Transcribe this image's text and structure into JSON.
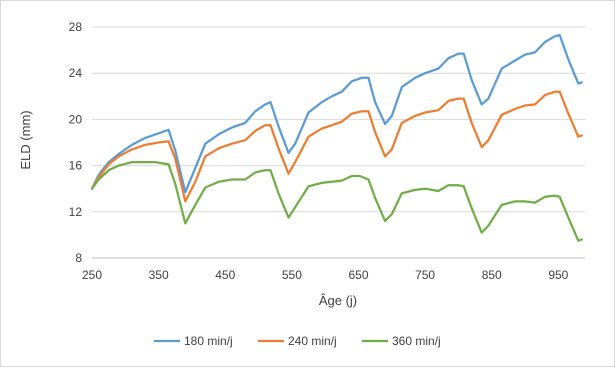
{
  "chart_data": {
    "type": "line",
    "title": "",
    "xlabel": "Âge (j)",
    "ylabel": "ELD (mm)",
    "xlim": [
      250,
      990
    ],
    "ylim": [
      8,
      28
    ],
    "x_ticks": [
      250,
      350,
      450,
      550,
      650,
      750,
      850,
      950
    ],
    "y_ticks": [
      8,
      12,
      16,
      20,
      24,
      28
    ],
    "grid": "horizontal",
    "legend_position": "bottom",
    "series": [
      {
        "name": "180 min/j",
        "color": "#5B9BD5",
        "points": [
          [
            250,
            14
          ],
          [
            260,
            15.2
          ],
          [
            275,
            16.3
          ],
          [
            290,
            17
          ],
          [
            310,
            17.8
          ],
          [
            330,
            18.4
          ],
          [
            350,
            18.8
          ],
          [
            365,
            19.1
          ],
          [
            375,
            17.3
          ],
          [
            390,
            13.7
          ],
          [
            405,
            15.8
          ],
          [
            420,
            17.9
          ],
          [
            440,
            18.7
          ],
          [
            460,
            19.3
          ],
          [
            480,
            19.7
          ],
          [
            495,
            20.7
          ],
          [
            510,
            21.3
          ],
          [
            518,
            21.5
          ],
          [
            530,
            19.4
          ],
          [
            545,
            17.1
          ],
          [
            555,
            17.9
          ],
          [
            575,
            20.6
          ],
          [
            595,
            21.5
          ],
          [
            610,
            22
          ],
          [
            625,
            22.4
          ],
          [
            640,
            23.3
          ],
          [
            655,
            23.6
          ],
          [
            665,
            23.6
          ],
          [
            675,
            21.5
          ],
          [
            690,
            19.6
          ],
          [
            700,
            20.3
          ],
          [
            715,
            22.8
          ],
          [
            735,
            23.6
          ],
          [
            750,
            24
          ],
          [
            770,
            24.4
          ],
          [
            785,
            25.3
          ],
          [
            800,
            25.7
          ],
          [
            808,
            25.7
          ],
          [
            820,
            23.4
          ],
          [
            835,
            21.3
          ],
          [
            845,
            21.8
          ],
          [
            865,
            24.4
          ],
          [
            885,
            25.1
          ],
          [
            900,
            25.6
          ],
          [
            915,
            25.8
          ],
          [
            930,
            26.7
          ],
          [
            945,
            27.2
          ],
          [
            952,
            27.3
          ],
          [
            965,
            25.2
          ],
          [
            980,
            23.1
          ],
          [
            985,
            23.2
          ]
        ]
      },
      {
        "name": "240 min/j",
        "color": "#ED7D31",
        "points": [
          [
            250,
            14
          ],
          [
            260,
            15
          ],
          [
            275,
            16.1
          ],
          [
            290,
            16.8
          ],
          [
            310,
            17.4
          ],
          [
            330,
            17.8
          ],
          [
            350,
            18
          ],
          [
            365,
            18.1
          ],
          [
            375,
            16.6
          ],
          [
            390,
            12.9
          ],
          [
            405,
            14.6
          ],
          [
            420,
            16.8
          ],
          [
            440,
            17.5
          ],
          [
            460,
            17.9
          ],
          [
            480,
            18.2
          ],
          [
            495,
            19
          ],
          [
            510,
            19.5
          ],
          [
            518,
            19.5
          ],
          [
            530,
            17.5
          ],
          [
            545,
            15.3
          ],
          [
            555,
            16.3
          ],
          [
            575,
            18.5
          ],
          [
            595,
            19.2
          ],
          [
            610,
            19.5
          ],
          [
            625,
            19.8
          ],
          [
            640,
            20.5
          ],
          [
            655,
            20.7
          ],
          [
            665,
            20.7
          ],
          [
            675,
            18.9
          ],
          [
            690,
            16.8
          ],
          [
            700,
            17.4
          ],
          [
            715,
            19.7
          ],
          [
            735,
            20.3
          ],
          [
            750,
            20.6
          ],
          [
            770,
            20.8
          ],
          [
            785,
            21.6
          ],
          [
            800,
            21.8
          ],
          [
            808,
            21.8
          ],
          [
            820,
            19.7
          ],
          [
            835,
            17.6
          ],
          [
            845,
            18.2
          ],
          [
            865,
            20.4
          ],
          [
            885,
            20.9
          ],
          [
            900,
            21.2
          ],
          [
            915,
            21.3
          ],
          [
            930,
            22.1
          ],
          [
            945,
            22.4
          ],
          [
            952,
            22.4
          ],
          [
            965,
            20.5
          ],
          [
            980,
            18.5
          ],
          [
            985,
            18.6
          ]
        ]
      },
      {
        "name": "360 min/j",
        "color": "#70AD47",
        "points": [
          [
            250,
            14
          ],
          [
            260,
            14.8
          ],
          [
            275,
            15.6
          ],
          [
            290,
            16
          ],
          [
            310,
            16.3
          ],
          [
            330,
            16.3
          ],
          [
            345,
            16.3
          ],
          [
            365,
            16.1
          ],
          [
            375,
            14.4
          ],
          [
            390,
            11
          ],
          [
            405,
            12.6
          ],
          [
            420,
            14.1
          ],
          [
            440,
            14.6
          ],
          [
            460,
            14.8
          ],
          [
            480,
            14.8
          ],
          [
            495,
            15.4
          ],
          [
            510,
            15.6
          ],
          [
            518,
            15.6
          ],
          [
            530,
            13.6
          ],
          [
            545,
            11.5
          ],
          [
            555,
            12.4
          ],
          [
            575,
            14.2
          ],
          [
            595,
            14.5
          ],
          [
            610,
            14.6
          ],
          [
            625,
            14.7
          ],
          [
            640,
            15.1
          ],
          [
            652,
            15.1
          ],
          [
            665,
            14.8
          ],
          [
            675,
            13.2
          ],
          [
            690,
            11.2
          ],
          [
            700,
            11.8
          ],
          [
            715,
            13.6
          ],
          [
            735,
            13.9
          ],
          [
            750,
            14
          ],
          [
            770,
            13.8
          ],
          [
            785,
            14.3
          ],
          [
            800,
            14.3
          ],
          [
            808,
            14.2
          ],
          [
            820,
            12.3
          ],
          [
            835,
            10.2
          ],
          [
            845,
            10.8
          ],
          [
            865,
            12.6
          ],
          [
            885,
            12.9
          ],
          [
            900,
            12.9
          ],
          [
            915,
            12.8
          ],
          [
            930,
            13.3
          ],
          [
            945,
            13.4
          ],
          [
            952,
            13.3
          ],
          [
            965,
            11.5
          ],
          [
            980,
            9.5
          ],
          [
            985,
            9.6
          ]
        ]
      }
    ]
  }
}
